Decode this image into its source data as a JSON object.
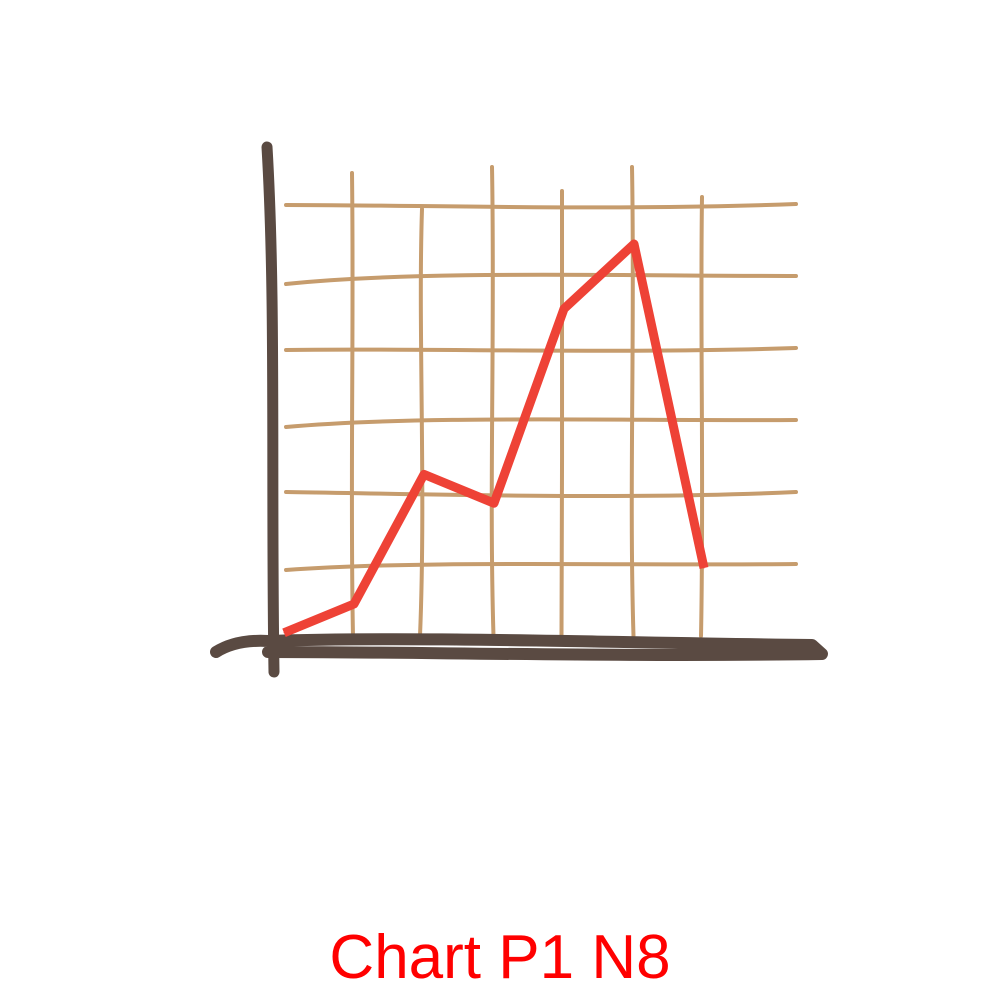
{
  "caption": "Chart P1 N8",
  "colors": {
    "line": "#ee4236",
    "grid": "#c69c6d",
    "axis": "#5a4a42",
    "caption": "#ff0000"
  },
  "chart_data": {
    "type": "line",
    "title": "",
    "xlabel": "",
    "ylabel": "",
    "grid": true,
    "xlim": [
      0,
      7
    ],
    "ylim": [
      0,
      6
    ],
    "x": [
      0,
      1,
      2,
      3,
      4,
      5,
      6
    ],
    "series": [
      {
        "values": [
          0.1,
          0.5,
          2.3,
          1.9,
          4.6,
          5.5,
          1.0
        ]
      }
    ]
  }
}
